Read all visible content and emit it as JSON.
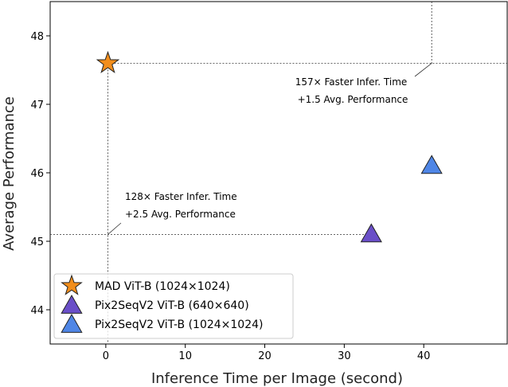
{
  "chart_data": {
    "type": "scatter",
    "xlabel": "Inference Time per Image (second)",
    "ylabel": "Average Performance",
    "xlim": [
      -7,
      50.5
    ],
    "ylim": [
      43.5,
      48.5
    ],
    "xticks": [
      0,
      10,
      20,
      30,
      40
    ],
    "yticks": [
      44,
      45,
      46,
      47,
      48
    ],
    "grid": false,
    "legend_position": "lower-left",
    "series": [
      {
        "name": "MAD ViT-B (1024×1024)",
        "marker": "star",
        "color": "#f28e1c",
        "x": [
          0.26
        ],
        "y": [
          47.6
        ]
      },
      {
        "name": "Pix2SeqV2 ViT-B (640×640)",
        "marker": "triangle",
        "color": "#6a4fc8",
        "x": [
          33.4
        ],
        "y": [
          45.1
        ]
      },
      {
        "name": "Pix2SeqV2 ViT-B (1024×1024)",
        "marker": "triangle",
        "color": "#4f86e6",
        "x": [
          41.0
        ],
        "y": [
          46.1
        ]
      }
    ],
    "annotations": [
      {
        "lines": [
          "157× Faster Infer. Time",
          "+1.5 Avg. Performance"
        ]
      },
      {
        "lines": [
          "128× Faster Infer. Time",
          "+2.5 Avg. Performance"
        ]
      }
    ]
  }
}
